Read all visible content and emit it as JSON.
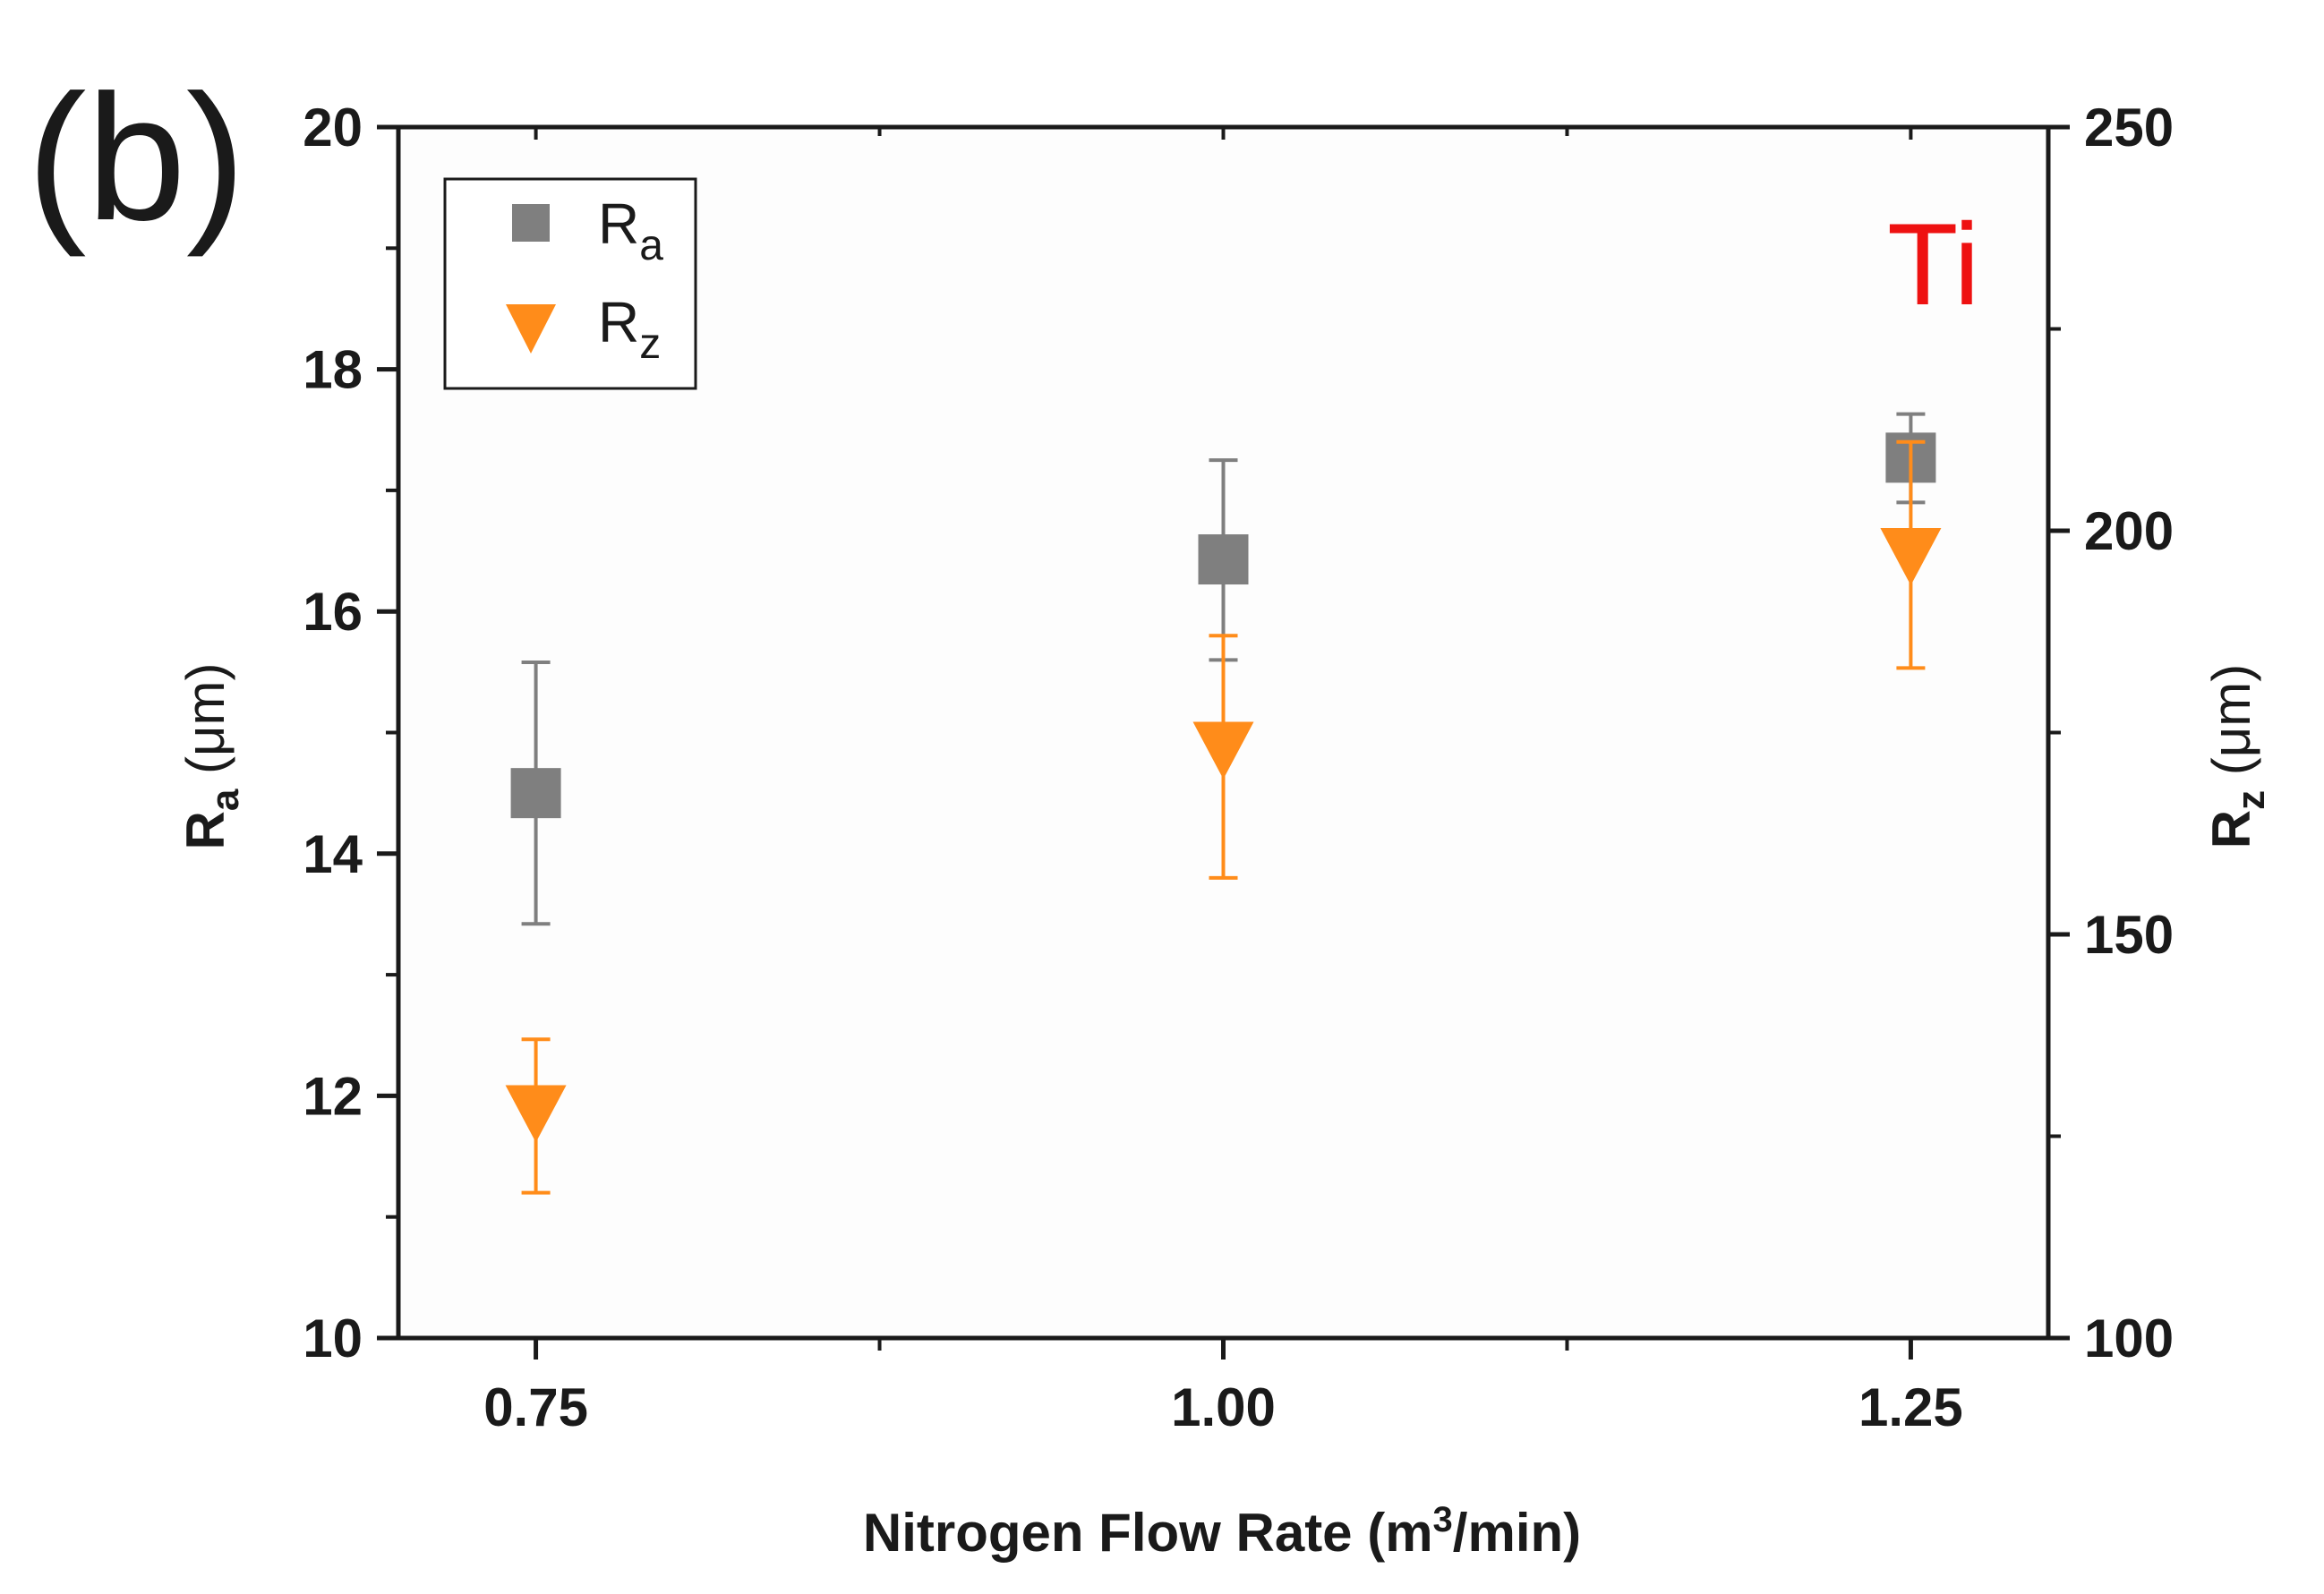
{
  "colors": {
    "ra": "#7f7f7f",
    "rz": "#ff8c1a",
    "annotation": "#ee1111",
    "axis": "#1a1a1a",
    "plot_bg": "#fdfdfd"
  },
  "chart_data": {
    "type": "scatter",
    "panel_label": "(b)",
    "annotation": "Ti",
    "x": {
      "values": [
        0.75,
        1.0,
        1.25
      ],
      "tick_labels": [
        "0.75",
        "1.00",
        "1.25"
      ],
      "range": [
        0.7,
        1.3
      ],
      "minor_ticks": [
        0.875,
        1.125
      ],
      "label": {
        "prefix": "Nitrogen Flow Rate (m",
        "sup": "3",
        "suffix": "/min)"
      }
    },
    "y_left": {
      "range": [
        10,
        20
      ],
      "ticks": [
        10,
        12,
        14,
        16,
        18,
        20
      ],
      "tick_labels": [
        "10",
        "12",
        "14",
        "16",
        "18",
        "20"
      ],
      "minor_ticks": [
        11,
        13,
        15,
        17,
        19
      ],
      "label": {
        "main": "R",
        "sub": "a",
        "unit": " (μm)"
      }
    },
    "y_right": {
      "range": [
        100,
        250
      ],
      "ticks": [
        100,
        150,
        200,
        250
      ],
      "tick_labels": [
        "100",
        "150",
        "200",
        "250"
      ],
      "minor_ticks": [
        125,
        175,
        225
      ],
      "label": {
        "main": "R",
        "sub": "z",
        "unit": " (μm)"
      }
    },
    "series": [
      {
        "name": "Ra",
        "legend_main": "R",
        "legend_sub": "a",
        "axis": "left",
        "marker": "square",
        "color": "#7f7f7f",
        "values": [
          14.5,
          16.43,
          17.27
        ],
        "err_low": [
          13.42,
          15.6,
          16.9
        ],
        "err_high": [
          15.58,
          17.25,
          17.63
        ]
      },
      {
        "name": "Rz",
        "legend_main": "R",
        "legend_sub": "z",
        "axis": "right",
        "marker": "triangle-down",
        "color": "#ff8c1a",
        "values": [
          128,
          173,
          197
        ],
        "err_low": [
          118,
          157,
          183
        ],
        "err_high": [
          137,
          187,
          211
        ]
      }
    ],
    "legend_position": "top-left"
  }
}
